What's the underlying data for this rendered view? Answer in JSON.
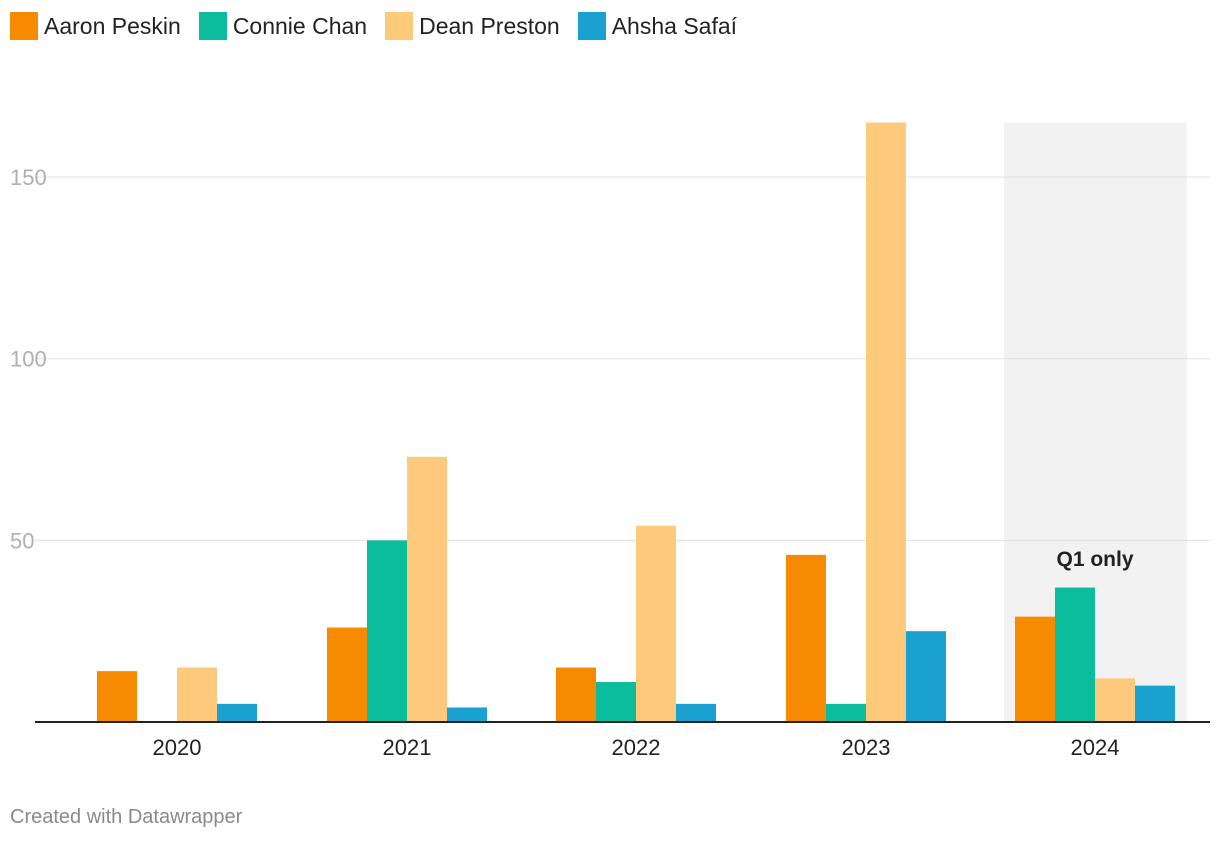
{
  "legend": [
    {
      "label": "Aaron Peskin",
      "color": "#f68a00"
    },
    {
      "label": "Connie Chan",
      "color": "#0bbd9c"
    },
    {
      "label": "Dean Preston",
      "color": "#fdca7b"
    },
    {
      "label": "Ahsha Safaí",
      "color": "#1aa1cf"
    }
  ],
  "chart_data": {
    "type": "bar",
    "categories": [
      "2020",
      "2021",
      "2022",
      "2023",
      "2024"
    ],
    "series": [
      {
        "name": "Aaron Peskin",
        "color": "#f68a00",
        "values": [
          14,
          26,
          15,
          46,
          29
        ]
      },
      {
        "name": "Connie Chan",
        "color": "#0bbd9c",
        "values": [
          0,
          50,
          11,
          5,
          37
        ]
      },
      {
        "name": "Dean Preston",
        "color": "#fdca7b",
        "values": [
          15,
          73,
          54,
          165,
          12
        ]
      },
      {
        "name": "Ahsha Safaí",
        "color": "#1aa1cf",
        "values": [
          5,
          4,
          5,
          25,
          10
        ]
      }
    ],
    "ylim": [
      0,
      165
    ],
    "yticks": [
      50,
      100,
      150
    ],
    "highlight": {
      "category": "2024",
      "label": "Q1 only",
      "color": "#f2f2f2"
    },
    "grid": true,
    "legend_position": "top-left"
  },
  "footer": {
    "credit": "Created with Datawrapper"
  }
}
